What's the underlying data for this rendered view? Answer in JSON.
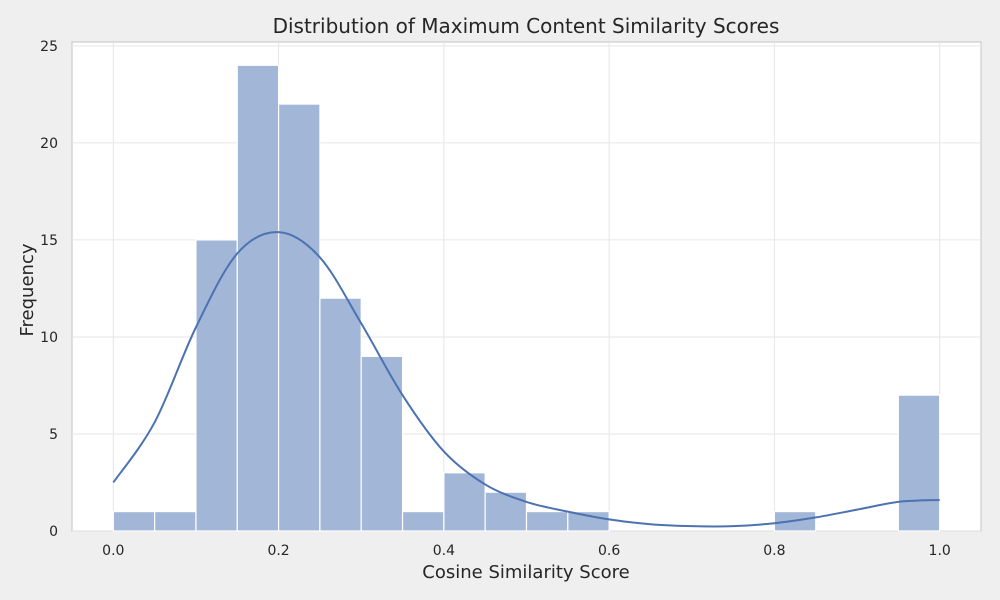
{
  "chart_data": {
    "type": "bar",
    "title": "Distribution of Maximum Content Similarity Scores",
    "xlabel": "Cosine Similarity Score",
    "ylabel": "Frequency",
    "xlim": [
      -0.05,
      1.05
    ],
    "ylim": [
      0,
      25.2
    ],
    "x_ticks": [
      0.0,
      0.2,
      0.4,
      0.6,
      0.8,
      1.0
    ],
    "x_tick_labels": [
      "0.0",
      "0.2",
      "0.4",
      "0.6",
      "0.8",
      "1.0"
    ],
    "y_ticks": [
      0,
      5,
      10,
      15,
      20,
      25
    ],
    "y_tick_labels": [
      "0",
      "5",
      "10",
      "15",
      "20",
      "25"
    ],
    "grid": true,
    "bin_width": 0.05,
    "bins": [
      {
        "start": 0.0,
        "count": 1
      },
      {
        "start": 0.05,
        "count": 1
      },
      {
        "start": 0.1,
        "count": 15
      },
      {
        "start": 0.15,
        "count": 24
      },
      {
        "start": 0.2,
        "count": 22
      },
      {
        "start": 0.25,
        "count": 12
      },
      {
        "start": 0.3,
        "count": 9
      },
      {
        "start": 0.35,
        "count": 1
      },
      {
        "start": 0.4,
        "count": 3
      },
      {
        "start": 0.45,
        "count": 2
      },
      {
        "start": 0.5,
        "count": 1
      },
      {
        "start": 0.55,
        "count": 1
      },
      {
        "start": 0.6,
        "count": 0
      },
      {
        "start": 0.65,
        "count": 0
      },
      {
        "start": 0.7,
        "count": 0
      },
      {
        "start": 0.75,
        "count": 0
      },
      {
        "start": 0.8,
        "count": 1
      },
      {
        "start": 0.85,
        "count": 0
      },
      {
        "start": 0.9,
        "count": 0
      },
      {
        "start": 0.95,
        "count": 7
      }
    ],
    "kde": {
      "x": [
        0.0,
        0.05,
        0.1,
        0.15,
        0.2,
        0.25,
        0.3,
        0.35,
        0.4,
        0.45,
        0.5,
        0.55,
        0.6,
        0.65,
        0.7,
        0.75,
        0.8,
        0.85,
        0.9,
        0.95,
        1.0
      ],
      "y": [
        2.5,
        5.6,
        10.5,
        14.3,
        15.4,
        14.1,
        10.7,
        7.0,
        4.1,
        2.4,
        1.5,
        1.0,
        0.6,
        0.35,
        0.25,
        0.25,
        0.4,
        0.7,
        1.1,
        1.5,
        1.6
      ]
    },
    "colors": {
      "bar_fill": "#a2b6d8",
      "bar_edge": "#ffffff",
      "kde_line": "#4c72b0",
      "grid": "#e6e6e6",
      "axes_border": "#cccccc",
      "plot_bg": "#ffffff",
      "page_bg": "#efefef"
    }
  }
}
